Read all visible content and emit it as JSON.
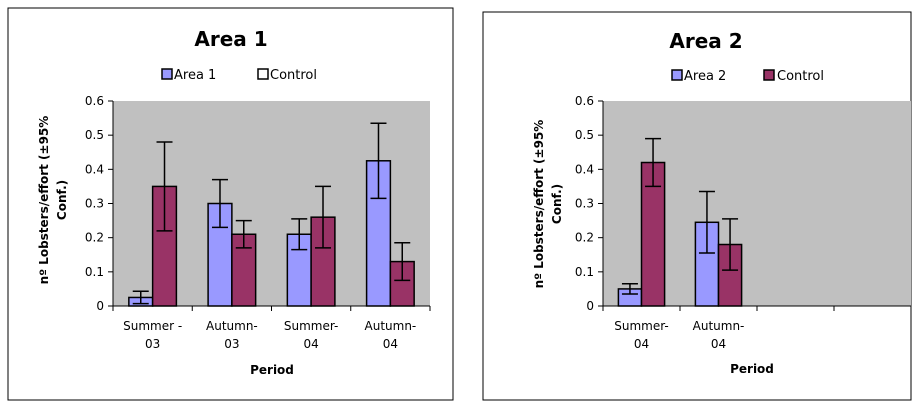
{
  "colors": {
    "area": "#9999ff",
    "control": "#993366",
    "plot_bg": "#c0c0c0",
    "frame": "#000000"
  },
  "chart_data": [
    {
      "type": "bar",
      "title": "Area 1",
      "categories": [
        [
          "Summer -",
          "03"
        ],
        [
          "Autumn-",
          "03"
        ],
        [
          "Summer-",
          "04"
        ],
        [
          "Autumn-",
          "04"
        ]
      ],
      "series": [
        {
          "name": "Area 1",
          "values": [
            0.025,
            0.3,
            0.21,
            0.425
          ],
          "err": [
            0.018,
            0.07,
            0.045,
            0.11
          ]
        },
        {
          "name": "Control",
          "values": [
            0.35,
            0.21,
            0.26,
            0.13
          ],
          "err": [
            0.13,
            0.04,
            0.09,
            0.055
          ]
        }
      ],
      "legend_markers": [
        "filled",
        "hollow"
      ],
      "xlabel": "Period",
      "ylabel_lines": [
        "nº Lobsters/effort (±95%",
        "Conf.)"
      ],
      "ylim": [
        0,
        0.6
      ],
      "yticks": [
        "0",
        "0.1",
        "0.2",
        "0.3",
        "0.4",
        "0.5",
        "0.6"
      ],
      "grid": false,
      "legend": "top"
    },
    {
      "type": "bar",
      "title": "Area 2",
      "categories": [
        [
          "Summer-",
          "04"
        ],
        [
          "Autumn-",
          "04"
        ],
        [
          "",
          ""
        ],
        [
          "",
          ""
        ]
      ],
      "series": [
        {
          "name": "Area 2",
          "values": [
            0.05,
            0.245,
            null,
            null
          ],
          "err": [
            0.015,
            0.09,
            null,
            null
          ]
        },
        {
          "name": "Control",
          "values": [
            0.42,
            0.18,
            null,
            null
          ],
          "err": [
            0.07,
            0.075,
            null,
            null
          ]
        }
      ],
      "legend_markers": [
        "filled",
        "filled"
      ],
      "xlabel": "Period",
      "ylabel_lines": [
        "nº Lobsters/effort (±95%",
        "Conf.)"
      ],
      "ylim": [
        0,
        0.6
      ],
      "yticks": [
        "0",
        "0.1",
        "0.2",
        "0.3",
        "0.4",
        "0.5",
        "0.6"
      ],
      "grid": false,
      "legend": "top"
    }
  ]
}
